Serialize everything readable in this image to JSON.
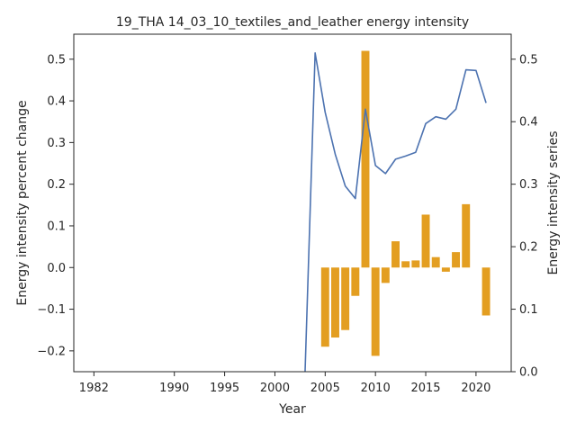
{
  "chart_data": {
    "type": "bar+line",
    "title": "19_THA 14_03_10_textiles_and_leather energy intensity",
    "xlabel": "Year",
    "ylabel_left": "Energy intensity percent change",
    "ylabel_right": "Energy intensity series",
    "xlim": [
      1980,
      2023.5
    ],
    "ylim_left": [
      -0.25,
      0.56
    ],
    "ylim_right": [
      0.0,
      0.54
    ],
    "x_ticks": [
      1982,
      1990,
      1995,
      2000,
      2005,
      2010,
      2015,
      2020
    ],
    "y_ticks_left": [
      -0.2,
      -0.1,
      0.0,
      0.1,
      0.2,
      0.3,
      0.4,
      0.5
    ],
    "y_ticks_right": [
      0.0,
      0.1,
      0.2,
      0.3,
      0.4,
      0.5
    ],
    "grid": false,
    "colors": {
      "bars": "#E39E21",
      "line": "#4C72B0",
      "axes": "#262626"
    },
    "bars": {
      "axis": "left",
      "x": [
        2005,
        2006,
        2007,
        2008,
        2009,
        2010,
        2011,
        2012,
        2013,
        2014,
        2015,
        2016,
        2017,
        2018,
        2019,
        2021
      ],
      "values": [
        -0.19,
        -0.168,
        -0.15,
        -0.068,
        0.52,
        -0.212,
        -0.037,
        0.063,
        0.015,
        0.017,
        0.127,
        0.025,
        -0.01,
        0.037,
        0.152,
        -0.115
      ]
    },
    "line": {
      "axis": "right",
      "x": [
        2003,
        2004,
        2005,
        2006,
        2007,
        2008,
        2009,
        2010,
        2011,
        2012,
        2013,
        2014,
        2015,
        2016,
        2017,
        2018,
        2019,
        2020,
        2021
      ],
      "values": [
        0.0,
        0.51,
        0.415,
        0.348,
        0.297,
        0.277,
        0.42,
        0.33,
        0.317,
        0.34,
        0.345,
        0.351,
        0.397,
        0.408,
        0.404,
        0.42,
        0.483,
        0.482,
        0.43
      ]
    }
  }
}
